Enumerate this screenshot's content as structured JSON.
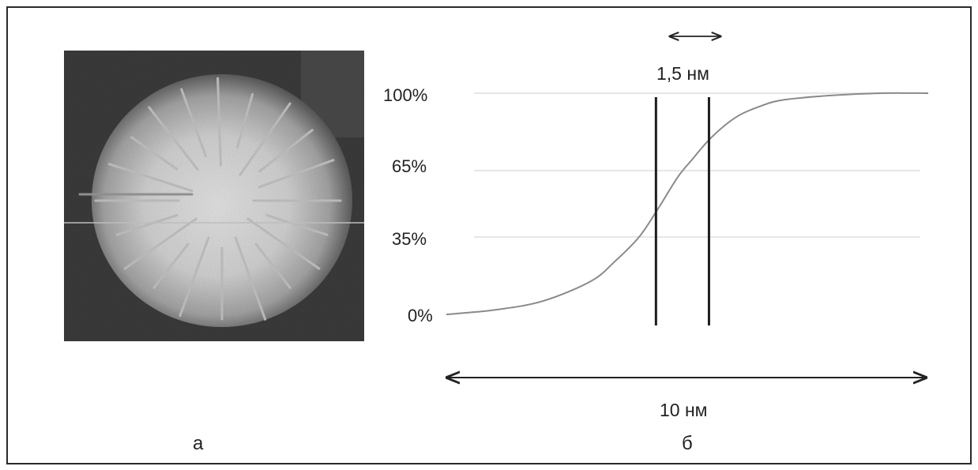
{
  "figure": {
    "panel_a": {
      "label": "а"
    },
    "panel_b": {
      "label": "б",
      "width_label": "1,5 нм",
      "range_label": "10 нм"
    }
  },
  "chart_data": {
    "type": "line",
    "title": "",
    "xlabel": "",
    "ylabel": "",
    "yticks": [
      "0%",
      "35%",
      "65%",
      "100%"
    ],
    "ylim": [
      0,
      100
    ],
    "xlim": [
      0,
      10
    ],
    "grid": false,
    "series": [
      {
        "values_x": [
          0,
          1,
          2,
          3,
          3.5,
          4,
          4.4,
          4.8,
          5.1,
          5.5,
          6,
          6.5,
          7,
          8,
          9,
          10
        ],
        "values_y": [
          0,
          2,
          6,
          15,
          24,
          35,
          48,
          62,
          70,
          80,
          89,
          94,
          97,
          99,
          100,
          100
        ]
      }
    ],
    "vertical_lines_x": [
      4.35,
      5.45
    ],
    "guide_levels": [
      35,
      65,
      100
    ]
  }
}
